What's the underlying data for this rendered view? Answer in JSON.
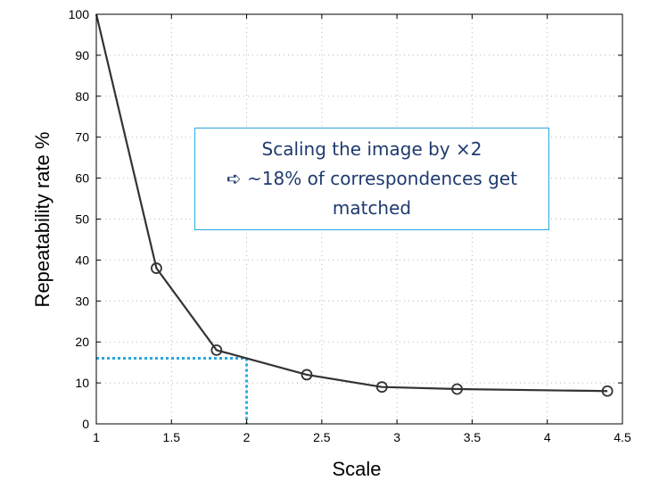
{
  "chart_data": {
    "type": "line",
    "xlabel": "Scale",
    "ylabel": "Repeatability rate %",
    "xlim": [
      1,
      4.5
    ],
    "ylim": [
      0,
      100
    ],
    "xticks": [
      "1",
      "1.5",
      "2",
      "2.5",
      "3",
      "3.5",
      "4",
      "4.5"
    ],
    "yticks": [
      "0",
      "10",
      "20",
      "30",
      "40",
      "50",
      "60",
      "70",
      "80",
      "90",
      "100"
    ],
    "grid": "dotted",
    "series": [
      {
        "x": [
          1,
          1.4,
          1.8,
          2.0,
          2.4,
          2.9,
          3.4,
          4.4
        ],
        "y": [
          100,
          38,
          18,
          16,
          12,
          9,
          8.5,
          8
        ],
        "markers_at": [
          1.4,
          1.8,
          2.4,
          2.9,
          3.4,
          4.4
        ]
      }
    ],
    "highlight": {
      "x": 2,
      "y": 16,
      "style": "dotted",
      "color": "#29a8e0"
    },
    "annotation": {
      "lines": [
        "Scaling the image by ×2",
        "➪ ~18% of correspondences get",
        "matched"
      ]
    }
  }
}
